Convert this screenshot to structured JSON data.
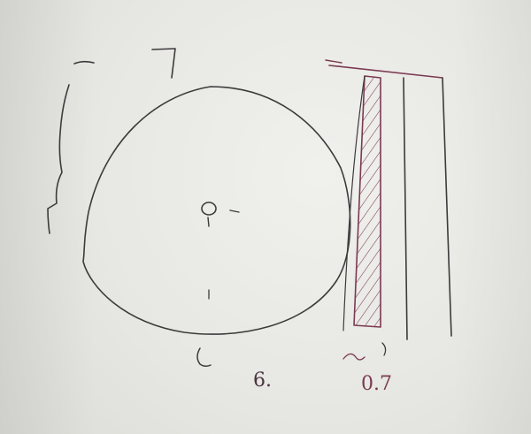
{
  "diagram": {
    "center_label": "0",
    "bottom_label": "6.",
    "column_label": "0.7",
    "ink_color": "#3d3a3c",
    "accent_ink_color": "#7a3a52",
    "paper_color": "#e9e9e6"
  }
}
